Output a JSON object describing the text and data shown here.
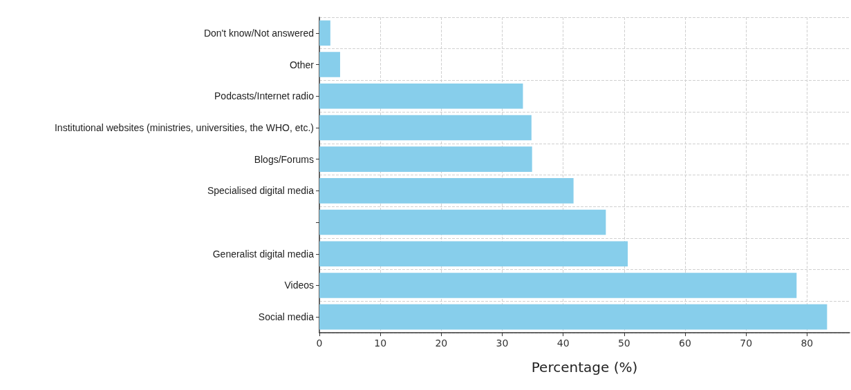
{
  "chart_data": {
    "type": "bar",
    "orientation": "horizontal",
    "xlabel": "Percentage (%)",
    "categories": [
      "Don't know/Not answered",
      "Other",
      "Podcasts/Internet radio",
      "Institutional websites (ministries, universities, the WHO, etc.)",
      "Blogs/Forums",
      "Specialised digital media",
      null,
      "Generalist digital media",
      "Videos",
      "Social media"
    ],
    "values": [
      1.8,
      3.4,
      33.4,
      34.8,
      34.9,
      41.7,
      47.0,
      50.6,
      78.3,
      83.3
    ],
    "color": "#87ceeb",
    "xlim": [
      0,
      87
    ],
    "xticks": [
      0,
      10,
      20,
      30,
      40,
      50,
      60,
      70,
      80
    ],
    "grid": true
  }
}
